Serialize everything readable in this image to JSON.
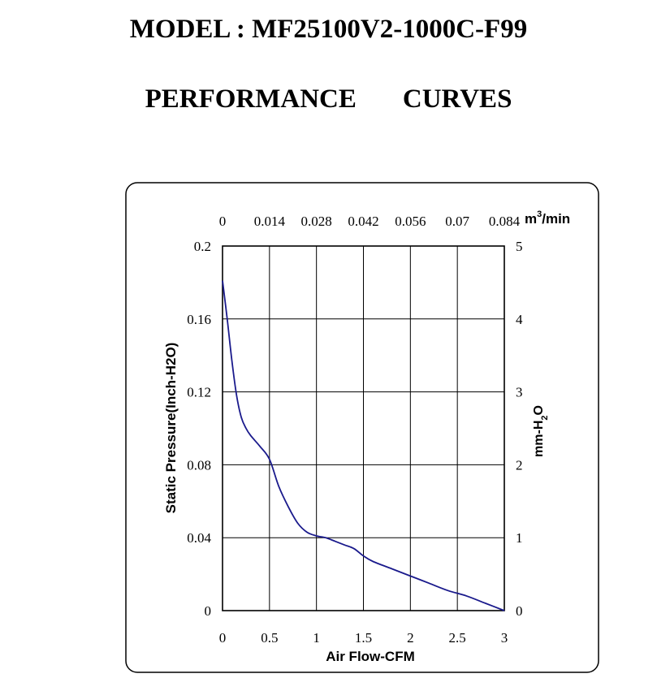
{
  "header": {
    "model_title": "MODEL : MF25100V2-1000C-F99",
    "performance_title": "PERFORMANCE    CURVES"
  },
  "chart_data": {
    "type": "line",
    "title": "",
    "xlabel": "Air Flow-CFM",
    "ylabel": "Static Pressure(Inch-H2O)",
    "xlim": [
      0,
      3
    ],
    "ylim": [
      0,
      0.2
    ],
    "x_ticks": [
      "0",
      "0.5",
      "1",
      "1.5",
      "2",
      "2.5",
      "3"
    ],
    "y_ticks": [
      "0",
      "0.04",
      "0.08",
      "0.12",
      "0.16",
      "0.2"
    ],
    "top_axis": {
      "unit_main": "m",
      "unit_sup": "3",
      "unit_tail": "/min",
      "ticks": [
        "0",
        "0.014",
        "0.028",
        "0.042",
        "0.056",
        "0.07",
        "0.084"
      ]
    },
    "right_axis": {
      "label_main": "mm-H",
      "label_sub": "2",
      "label_tail": "O",
      "ticks": [
        "0",
        "1",
        "2",
        "3",
        "4",
        "5"
      ],
      "ylim": [
        0,
        5
      ]
    },
    "grid": true,
    "line_color": "#1a1a8c",
    "series": [
      {
        "x": [
          0,
          0.05,
          0.1,
          0.15,
          0.2,
          0.25,
          0.3,
          0.4,
          0.5,
          0.6,
          0.7,
          0.8,
          0.9,
          1.0,
          1.1,
          1.2,
          1.3,
          1.4,
          1.5,
          1.6,
          1.8,
          2.0,
          2.2,
          2.4,
          2.6,
          2.8,
          3.0
        ],
        "y": [
          0.181,
          0.16,
          0.137,
          0.118,
          0.106,
          0.1,
          0.096,
          0.09,
          0.083,
          0.068,
          0.057,
          0.048,
          0.043,
          0.041,
          0.04,
          0.038,
          0.036,
          0.034,
          0.03,
          0.027,
          0.023,
          0.019,
          0.015,
          0.011,
          0.008,
          0.004,
          0.0
        ]
      }
    ]
  }
}
